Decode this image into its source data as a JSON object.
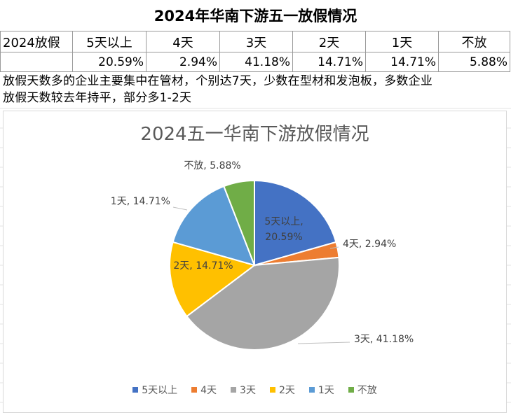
{
  "sheet": {
    "title": "2024年华南下游五一放假情况",
    "header_label": "2024放假",
    "columns": [
      "5天以上",
      "4天",
      "3天",
      "2天",
      "1天",
      "不放"
    ],
    "values": [
      "20.59%",
      "2.94%",
      "41.18%",
      "14.71%",
      "14.71%",
      "5.88%"
    ],
    "note_line1": "放假天数多的企业主要集中在管材，个别达7天，少数在型材和发泡板，多数企业",
    "note_line2": "放假天数较去年持平，部分多1-2天"
  },
  "chart_data": {
    "type": "pie",
    "title": "2024五一华南下游放假情况",
    "categories": [
      "5天以上",
      "4天",
      "3天",
      "2天",
      "1天",
      "不放"
    ],
    "values": [
      20.59,
      2.94,
      41.18,
      14.71,
      14.71,
      5.88
    ],
    "labels": [
      "5天以上, 20.59%",
      "4天, 2.94%",
      "3天, 41.18%",
      "2天, 14.71%",
      "1天, 14.71%",
      "不放, 5.88%"
    ],
    "colors": [
      "#4472C4",
      "#ED7D31",
      "#A5A5A5",
      "#FFC000",
      "#5B9BD5",
      "#70AD47"
    ],
    "legend_position": "bottom"
  }
}
